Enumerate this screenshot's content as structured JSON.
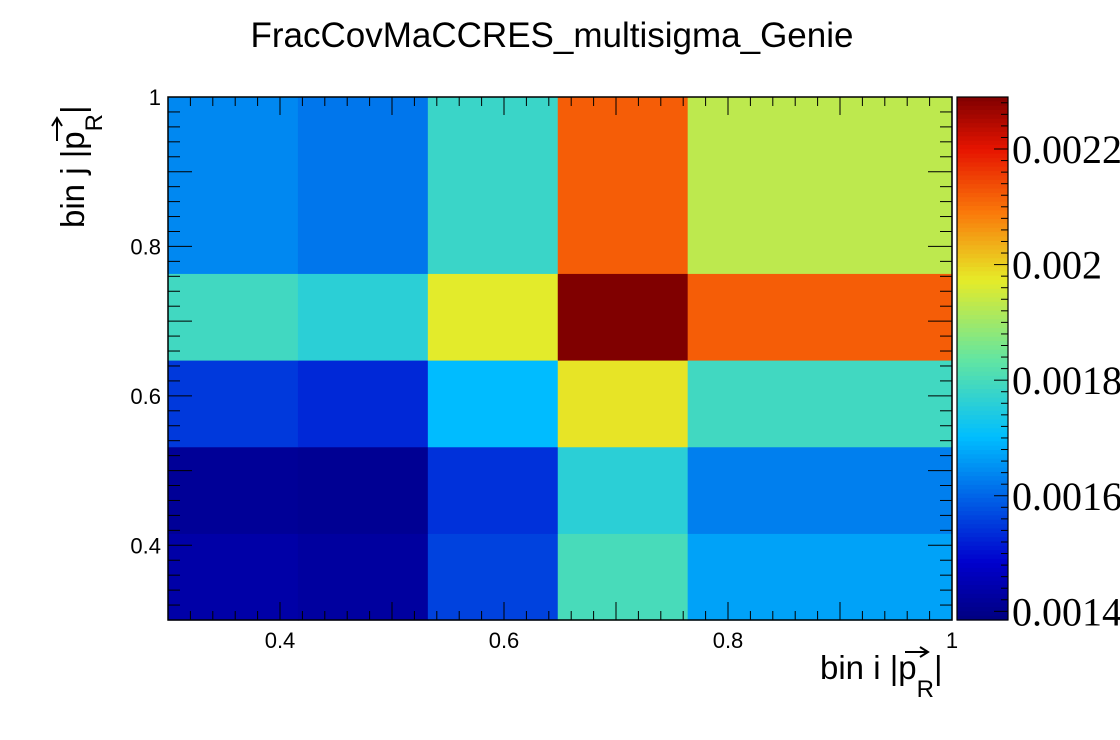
{
  "chart_data": {
    "type": "heatmap",
    "title": "FracCovMaCCRES_multisigma_Genie",
    "xlabel": {
      "prefix": "bin i |",
      "vector": "p",
      "sub": "R",
      "suffix": "|"
    },
    "ylabel": {
      "prefix": "bin j |",
      "vector": "p",
      "sub": "R",
      "suffix": "|"
    },
    "xlim": [
      0.3,
      1.0
    ],
    "ylim": [
      0.3,
      1.0
    ],
    "x_ticks": [
      "0.4",
      "0.6",
      "0.8",
      "1"
    ],
    "y_ticks": [
      "0.4",
      "0.6",
      "0.8",
      "1"
    ],
    "x_edges": [
      0.3,
      0.416,
      0.532,
      0.648,
      0.764,
      1.0
    ],
    "y_edges": [
      0.3,
      0.416,
      0.532,
      0.648,
      0.764,
      1.0
    ],
    "z_range": [
      0.001385,
      0.00229
    ],
    "colorbar_ticks": [
      "0.0014",
      "0.0016",
      "0.0018",
      "0.002",
      "0.0022"
    ],
    "z": [
      [
        0.001435,
        0.001425,
        0.00156,
        0.0018,
        0.00167
      ],
      [
        0.001415,
        0.00141,
        0.00154,
        0.00176,
        0.00163
      ],
      [
        0.00155,
        0.00153,
        0.0017,
        0.00198,
        0.00179
      ],
      [
        0.00179,
        0.00176,
        0.00197,
        0.00229,
        0.00212
      ],
      [
        0.00164,
        0.00162,
        0.00178,
        0.00212,
        0.00193
      ]
    ]
  }
}
